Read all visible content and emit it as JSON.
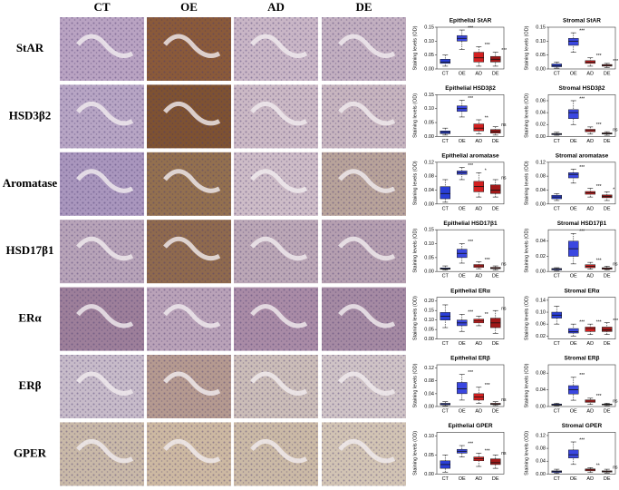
{
  "columns": [
    "CT",
    "OE",
    "AD",
    "DE"
  ],
  "rows": [
    "StAR",
    "HSD3β2",
    "Aromatase",
    "HSD17β1",
    "ERα",
    "ERβ",
    "GPER"
  ],
  "chart_data": [
    {
      "type": "box",
      "title": "Epithelial StAR",
      "ylabel": "Staining levels (OD)",
      "categories": [
        "CT",
        "OE",
        "AD",
        "DE"
      ],
      "colors": [
        "#2a3fd6",
        "#3a47e0",
        "#d42020",
        "#a01818"
      ],
      "ylim": [
        0,
        0.15
      ],
      "yticks": [
        {
          "value": 0,
          "label": "0.00"
        },
        0.05,
        {
          "value": 0.1,
          "label": "0.10"
        },
        0.15
      ],
      "boxes": [
        {
          "min": 0.01,
          "q1": 0.02,
          "median": 0.025,
          "q3": 0.035,
          "max": 0.05
        },
        {
          "min": 0.07,
          "q1": 0.1,
          "median": 0.11,
          "q3": 0.12,
          "max": 0.14
        },
        {
          "min": 0.01,
          "q1": 0.025,
          "median": 0.04,
          "q3": 0.06,
          "max": 0.08
        },
        {
          "min": 0.01,
          "q1": 0.025,
          "median": 0.035,
          "q3": 0.045,
          "max": 0.06
        }
      ],
      "sig": [
        null,
        "***",
        "***",
        "***"
      ]
    },
    {
      "type": "box",
      "title": "Stromal StAR",
      "ylabel": "Staining levels (OD)",
      "categories": [
        "CT",
        "OE",
        "AD",
        "DE"
      ],
      "colors": [
        "#2a3fd6",
        "#3a47e0",
        "#d42020",
        "#a01818"
      ],
      "ylim": [
        0,
        0.15
      ],
      "yticks": [
        {
          "value": 0,
          "label": "0.00"
        },
        0.05,
        {
          "value": 0.1,
          "label": "0.10"
        },
        0.15
      ],
      "boxes": [
        {
          "min": 0.003,
          "q1": 0.008,
          "median": 0.012,
          "q3": 0.018,
          "max": 0.025
        },
        {
          "min": 0.06,
          "q1": 0.085,
          "median": 0.1,
          "q3": 0.11,
          "max": 0.13
        },
        {
          "min": 0.01,
          "q1": 0.02,
          "median": 0.025,
          "q3": 0.03,
          "max": 0.04
        },
        {
          "min": 0.005,
          "q1": 0.01,
          "median": 0.013,
          "q3": 0.016,
          "max": 0.02
        }
      ],
      "sig": [
        null,
        "***",
        "***",
        "***"
      ]
    },
    {
      "type": "box",
      "title": "Epithelial HSD3β2",
      "ylabel": "Staining levels (OD)",
      "categories": [
        "CT",
        "OE",
        "AD",
        "DE"
      ],
      "colors": [
        "#2a3fd6",
        "#3a47e0",
        "#d42020",
        "#a01818"
      ],
      "ylim": [
        0,
        0.15
      ],
      "yticks": [
        {
          "value": 0,
          "label": "0.00"
        },
        0.05,
        {
          "value": 0.1,
          "label": "0.10"
        },
        0.15
      ],
      "boxes": [
        {
          "min": 0.005,
          "q1": 0.01,
          "median": 0.015,
          "q3": 0.02,
          "max": 0.03
        },
        {
          "min": 0.07,
          "q1": 0.09,
          "median": 0.1,
          "q3": 0.11,
          "max": 0.13
        },
        {
          "min": 0.01,
          "q1": 0.02,
          "median": 0.03,
          "q3": 0.045,
          "max": 0.06
        },
        {
          "min": 0.005,
          "q1": 0.012,
          "median": 0.018,
          "q3": 0.025,
          "max": 0.035
        }
      ],
      "sig": [
        null,
        "***",
        "**",
        "ns"
      ]
    },
    {
      "type": "box",
      "title": "Stromal HSD3β2",
      "ylabel": "Staining levels (OD)",
      "categories": [
        "CT",
        "OE",
        "AD",
        "DE"
      ],
      "colors": [
        "#2a3fd6",
        "#3a47e0",
        "#d42020",
        "#a01818"
      ],
      "ylim": [
        0,
        0.07
      ],
      "yticks": [
        {
          "value": 0,
          "label": "0.00"
        },
        0.02,
        0.04,
        0.06
      ],
      "boxes": [
        {
          "min": 0.002,
          "q1": 0.003,
          "median": 0.004,
          "q3": 0.005,
          "max": 0.007
        },
        {
          "min": 0.02,
          "q1": 0.03,
          "median": 0.04,
          "q3": 0.045,
          "max": 0.06
        },
        {
          "min": 0.004,
          "q1": 0.008,
          "median": 0.01,
          "q3": 0.012,
          "max": 0.016
        },
        {
          "min": 0.002,
          "q1": 0.004,
          "median": 0.005,
          "q3": 0.006,
          "max": 0.008
        }
      ],
      "sig": [
        null,
        "***",
        "***",
        "ns"
      ]
    },
    {
      "type": "box",
      "title": "Epithelial aromatase",
      "ylabel": "Staining levels (OD)",
      "categories": [
        "CT",
        "OE",
        "AD",
        "DE"
      ],
      "colors": [
        "#2a3fd6",
        "#3a47e0",
        "#d42020",
        "#a01818"
      ],
      "ylim": [
        0,
        0.12
      ],
      "yticks": [
        {
          "value": 0,
          "label": "0.00"
        },
        0.04,
        0.08,
        0.12
      ],
      "boxes": [
        {
          "min": 0.005,
          "q1": 0.015,
          "median": 0.03,
          "q3": 0.05,
          "max": 0.07
        },
        {
          "min": 0.07,
          "q1": 0.085,
          "median": 0.09,
          "q3": 0.095,
          "max": 0.105
        },
        {
          "min": 0.02,
          "q1": 0.035,
          "median": 0.05,
          "q3": 0.065,
          "max": 0.09
        },
        {
          "min": 0.02,
          "q1": 0.03,
          "median": 0.04,
          "q3": 0.055,
          "max": 0.07
        }
      ],
      "sig": [
        null,
        "***",
        "*",
        "ns"
      ]
    },
    {
      "type": "box",
      "title": "Stromal aromatase",
      "ylabel": "Staining levels (OD)",
      "categories": [
        "CT",
        "OE",
        "AD",
        "DE"
      ],
      "colors": [
        "#2a3fd6",
        "#3a47e0",
        "#d42020",
        "#a01818"
      ],
      "ylim": [
        0,
        0.12
      ],
      "yticks": [
        {
          "value": 0,
          "label": "0.00"
        },
        0.04,
        0.08,
        0.12
      ],
      "boxes": [
        {
          "min": 0.01,
          "q1": 0.015,
          "median": 0.02,
          "q3": 0.025,
          "max": 0.03
        },
        {
          "min": 0.06,
          "q1": 0.075,
          "median": 0.085,
          "q3": 0.09,
          "max": 0.1
        },
        {
          "min": 0.02,
          "q1": 0.028,
          "median": 0.032,
          "q3": 0.036,
          "max": 0.045
        },
        {
          "min": 0.01,
          "q1": 0.018,
          "median": 0.022,
          "q3": 0.026,
          "max": 0.035
        }
      ],
      "sig": [
        null,
        "***",
        "***",
        "*"
      ]
    },
    {
      "type": "box",
      "title": "Epithelial HSD17β1",
      "ylabel": "Staining levels (OD)",
      "categories": [
        "CT",
        "OE",
        "AD",
        "DE"
      ],
      "colors": [
        "#2a3fd6",
        "#3a47e0",
        "#d42020",
        "#a01818"
      ],
      "ylim": [
        0,
        0.15
      ],
      "yticks": [
        {
          "value": 0,
          "label": "0.00"
        },
        0.05,
        {
          "value": 0.1,
          "label": "0.10"
        },
        0.15
      ],
      "boxes": [
        {
          "min": 0.005,
          "q1": 0.008,
          "median": 0.01,
          "q3": 0.013,
          "max": 0.02
        },
        {
          "min": 0.03,
          "q1": 0.05,
          "median": 0.065,
          "q3": 0.08,
          "max": 0.1
        },
        {
          "min": 0.01,
          "q1": 0.015,
          "median": 0.02,
          "q3": 0.025,
          "max": 0.035
        },
        {
          "min": 0.005,
          "q1": 0.01,
          "median": 0.012,
          "q3": 0.015,
          "max": 0.02
        }
      ],
      "sig": [
        null,
        "***",
        "***",
        "ns"
      ]
    },
    {
      "type": "box",
      "title": "Stromal HSD17β1",
      "ylabel": "Staining levels (OD)",
      "categories": [
        "CT",
        "OE",
        "AD",
        "DE"
      ],
      "colors": [
        "#2a3fd6",
        "#3a47e0",
        "#d42020",
        "#a01818"
      ],
      "ylim": [
        0,
        0.055
      ],
      "yticks": [
        {
          "value": 0,
          "label": "0.00"
        },
        0.02,
        0.04
      ],
      "boxes": [
        {
          "min": 0.001,
          "q1": 0.002,
          "median": 0.003,
          "q3": 0.004,
          "max": 0.005
        },
        {
          "min": 0.01,
          "q1": 0.02,
          "median": 0.03,
          "q3": 0.04,
          "max": 0.05
        },
        {
          "min": 0.003,
          "q1": 0.005,
          "median": 0.007,
          "q3": 0.009,
          "max": 0.012
        },
        {
          "min": 0.002,
          "q1": 0.003,
          "median": 0.004,
          "q3": 0.005,
          "max": 0.007
        }
      ],
      "sig": [
        null,
        "***",
        "***",
        "ns"
      ]
    },
    {
      "type": "box",
      "title": "Epithelial ERα",
      "ylabel": "Staining levels (OD)",
      "categories": [
        "CT",
        "OE",
        "AD",
        "DE"
      ],
      "colors": [
        "#2a3fd6",
        "#3a47e0",
        "#d42020",
        "#a01818"
      ],
      "ylim": [
        0,
        0.22
      ],
      "yticks": [
        {
          "value": 0,
          "label": "0.00"
        },
        0.05,
        {
          "value": 0.1,
          "label": "0.10"
        },
        0.15,
        {
          "value": 0.2,
          "label": "0.20"
        }
      ],
      "boxes": [
        {
          "min": 0.06,
          "q1": 0.1,
          "median": 0.12,
          "q3": 0.14,
          "max": 0.18
        },
        {
          "min": 0.04,
          "q1": 0.07,
          "median": 0.085,
          "q3": 0.1,
          "max": 0.13
        },
        {
          "min": 0.07,
          "q1": 0.085,
          "median": 0.095,
          "q3": 0.105,
          "max": 0.12
        },
        {
          "min": 0.03,
          "q1": 0.06,
          "median": 0.085,
          "q3": 0.11,
          "max": 0.15
        }
      ],
      "sig": [
        null,
        "***",
        "**",
        "ns"
      ]
    },
    {
      "type": "box",
      "title": "Stromal ERα",
      "ylabel": "Staining levels (OD)",
      "categories": [
        "CT",
        "OE",
        "AD",
        "DE"
      ],
      "colors": [
        "#2a3fd6",
        "#3a47e0",
        "#d42020",
        "#a01818"
      ],
      "ylim": [
        0.01,
        0.15
      ],
      "yticks": [
        0.02,
        0.06,
        {
          "value": 0.1,
          "label": "0.10"
        },
        0.14
      ],
      "boxes": [
        {
          "min": 0.06,
          "q1": 0.08,
          "median": 0.09,
          "q3": 0.1,
          "max": 0.12
        },
        {
          "min": 0.02,
          "q1": 0.03,
          "median": 0.035,
          "q3": 0.045,
          "max": 0.06
        },
        {
          "min": 0.025,
          "q1": 0.035,
          "median": 0.045,
          "q3": 0.05,
          "max": 0.06
        },
        {
          "min": 0.025,
          "q1": 0.035,
          "median": 0.04,
          "q3": 0.05,
          "max": 0.065
        }
      ],
      "sig": [
        null,
        "***",
        "***",
        "***"
      ]
    },
    {
      "type": "box",
      "title": "Epithelial ERβ",
      "ylabel": "Staining levels (OD)",
      "categories": [
        "CT",
        "OE",
        "AD",
        "DE"
      ],
      "colors": [
        "#2a3fd6",
        "#3a47e0",
        "#d42020",
        "#a01818"
      ],
      "ylim": [
        0,
        0.13
      ],
      "yticks": [
        {
          "value": 0,
          "label": "0.00"
        },
        0.04,
        0.08,
        0.12
      ],
      "boxes": [
        {
          "min": 0.002,
          "q1": 0.005,
          "median": 0.008,
          "q3": 0.01,
          "max": 0.015
        },
        {
          "min": 0.02,
          "q1": 0.04,
          "median": 0.055,
          "q3": 0.075,
          "max": 0.1
        },
        {
          "min": 0.01,
          "q1": 0.02,
          "median": 0.03,
          "q3": 0.04,
          "max": 0.06
        },
        {
          "min": 0.003,
          "q1": 0.006,
          "median": 0.008,
          "q3": 0.01,
          "max": 0.015
        }
      ],
      "sig": [
        null,
        "***",
        "***",
        "ns"
      ]
    },
    {
      "type": "box",
      "title": "Stromal ERβ",
      "ylabel": "Staining levels (OD)",
      "categories": [
        "CT",
        "OE",
        "AD",
        "DE"
      ],
      "colors": [
        "#2a3fd6",
        "#3a47e0",
        "#d42020",
        "#a01818"
      ],
      "ylim": [
        0,
        0.1
      ],
      "yticks": [
        {
          "value": 0,
          "label": "0.00"
        },
        0.04,
        0.08
      ],
      "boxes": [
        {
          "min": 0.002,
          "q1": 0.003,
          "median": 0.004,
          "q3": 0.006,
          "max": 0.008
        },
        {
          "min": 0.015,
          "q1": 0.03,
          "median": 0.04,
          "q3": 0.05,
          "max": 0.07
        },
        {
          "min": 0.005,
          "q1": 0.01,
          "median": 0.013,
          "q3": 0.016,
          "max": 0.02
        },
        {
          "min": 0.002,
          "q1": 0.004,
          "median": 0.005,
          "q3": 0.006,
          "max": 0.008
        }
      ],
      "sig": [
        null,
        "***",
        "***",
        "ns"
      ]
    },
    {
      "type": "box",
      "title": "Epithelial GPER",
      "ylabel": "Staining levels (OD)",
      "categories": [
        "CT",
        "OE",
        "AD",
        "DE"
      ],
      "colors": [
        "#2a3fd6",
        "#3a47e0",
        "#d42020",
        "#a01818"
      ],
      "ylim": [
        0,
        0.11
      ],
      "yticks": [
        {
          "value": 0,
          "label": "0.00"
        },
        0.05,
        {
          "value": 0.1,
          "label": "0.10"
        }
      ],
      "boxes": [
        {
          "min": 0.005,
          "q1": 0.015,
          "median": 0.025,
          "q3": 0.035,
          "max": 0.05
        },
        {
          "min": 0.045,
          "q1": 0.055,
          "median": 0.06,
          "q3": 0.065,
          "max": 0.075
        },
        {
          "min": 0.02,
          "q1": 0.035,
          "median": 0.04,
          "q3": 0.045,
          "max": 0.055
        },
        {
          "min": 0.015,
          "q1": 0.025,
          "median": 0.03,
          "q3": 0.04,
          "max": 0.05
        }
      ],
      "sig": [
        null,
        "***",
        "***",
        "ns"
      ]
    },
    {
      "type": "box",
      "title": "Stromal GPER",
      "ylabel": "Staining levels (OD)",
      "categories": [
        "CT",
        "OE",
        "AD",
        "DE"
      ],
      "colors": [
        "#2a3fd6",
        "#3a47e0",
        "#d42020",
        "#a01818"
      ],
      "ylim": [
        0,
        0.13
      ],
      "yticks": [
        {
          "value": 0,
          "label": "0.00"
        },
        0.04,
        0.08,
        0.12
      ],
      "boxes": [
        {
          "min": 0.002,
          "q1": 0.005,
          "median": 0.008,
          "q3": 0.01,
          "max": 0.015
        },
        {
          "min": 0.03,
          "q1": 0.05,
          "median": 0.06,
          "q3": 0.075,
          "max": 0.1
        },
        {
          "min": 0.005,
          "q1": 0.01,
          "median": 0.013,
          "q3": 0.016,
          "max": 0.02
        },
        {
          "min": 0.003,
          "q1": 0.006,
          "median": 0.008,
          "q3": 0.01,
          "max": 0.015
        }
      ],
      "sig": [
        null,
        "***",
        "**",
        "ns"
      ]
    }
  ]
}
